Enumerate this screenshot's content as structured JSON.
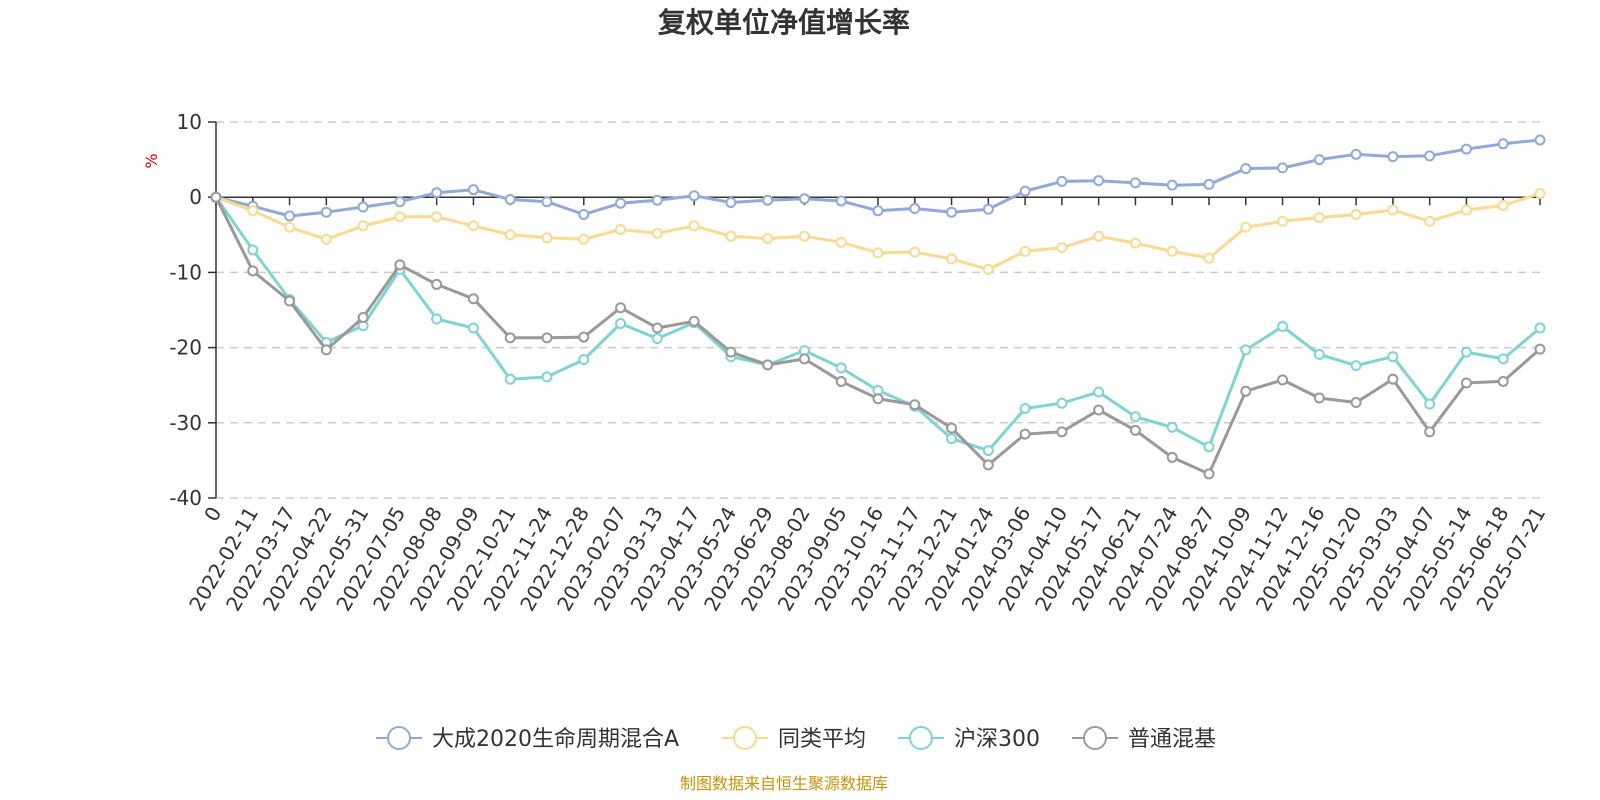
{
  "chart_data": {
    "type": "line",
    "title": "复权单位净值增长率",
    "ylabel": "%",
    "ylim": [
      -40,
      10
    ],
    "yticks": [
      10,
      0,
      -10,
      -20,
      -30,
      -40
    ],
    "grid": true,
    "legend_position": "bottom",
    "source": "制图数据来自恒生聚源数据库",
    "x_tick_labels": [
      "0",
      "2022-02-11",
      "2022-03-17",
      "2022-04-22",
      "2022-05-31",
      "2022-07-05",
      "2022-08-08",
      "2022-09-09",
      "2022-10-21",
      "2022-11-24",
      "2022-12-28",
      "2023-02-07",
      "2023-03-13",
      "2023-04-17",
      "2023-05-24",
      "2023-06-29",
      "2023-08-02",
      "2023-09-05",
      "2023-10-16",
      "2023-11-17",
      "2023-12-21",
      "2024-01-24",
      "2024-03-06",
      "2024-04-10",
      "2024-05-17",
      "2024-06-21",
      "2024-07-24",
      "2024-08-27",
      "2024-10-09",
      "2024-11-12",
      "2024-12-16",
      "2025-01-20",
      "2025-03-03",
      "2025-04-07",
      "2025-05-14",
      "2025-06-18",
      "2025-07-21"
    ],
    "series": [
      {
        "name": "大成2020生命周期混合A",
        "color": "#8fa9d8",
        "values": [
          0,
          -1.2,
          -2.5,
          -2.0,
          -1.3,
          -0.6,
          0.6,
          1.0,
          -0.3,
          -0.6,
          -2.3,
          -0.8,
          -0.4,
          0.2,
          -0.7,
          -0.4,
          -0.2,
          -0.5,
          -1.8,
          -1.5,
          -2.0,
          -1.6,
          0.8,
          2.1,
          2.2,
          1.9,
          1.6,
          1.7,
          3.8,
          3.9,
          5.0,
          5.7,
          5.4,
          5.5,
          6.4,
          7.1,
          7.6
        ]
      },
      {
        "name": "同类平均",
        "color": "#fbd991",
        "values": [
          0,
          -1.8,
          -4.0,
          -5.6,
          -3.8,
          -2.6,
          -2.6,
          -3.8,
          -5.0,
          -5.4,
          -5.6,
          -4.3,
          -4.8,
          -3.8,
          -5.2,
          -5.5,
          -5.2,
          -6.0,
          -7.4,
          -7.3,
          -8.2,
          -9.6,
          -7.2,
          -6.7,
          -5.2,
          -6.1,
          -7.2,
          -8.1,
          -4.0,
          -3.2,
          -2.7,
          -2.3,
          -1.7,
          -3.2,
          -1.7,
          -1.1,
          0.5
        ]
      },
      {
        "name": "沪深300",
        "color": "#7fd3d6",
        "values": [
          0,
          -7.0,
          -13.6,
          -19.3,
          -17.1,
          -9.6,
          -16.2,
          -17.4,
          -24.2,
          -23.9,
          -21.6,
          -16.8,
          -18.8,
          -16.7,
          -21.2,
          -22.3,
          -20.4,
          -22.7,
          -25.7,
          -27.8,
          -32.1,
          -33.7,
          -28.1,
          -27.4,
          -25.9,
          -29.2,
          -30.6,
          -33.2,
          -20.3,
          -17.2,
          -20.9,
          -22.4,
          -21.2,
          -27.5,
          -20.6,
          -21.5,
          -17.4
        ]
      },
      {
        "name": "普通混基",
        "color": "#999999",
        "values": [
          0,
          -9.8,
          -13.8,
          -20.3,
          -16.0,
          -9.0,
          -11.6,
          -13.5,
          -18.7,
          -18.7,
          -18.6,
          -14.7,
          -17.4,
          -16.5,
          -20.6,
          -22.3,
          -21.5,
          -24.5,
          -26.8,
          -27.6,
          -30.7,
          -35.6,
          -31.5,
          -31.2,
          -28.3,
          -31.0,
          -34.6,
          -36.8,
          -25.8,
          -24.3,
          -26.7,
          -27.3,
          -24.2,
          -31.2,
          -24.7,
          -24.5,
          -20.2
        ]
      }
    ]
  }
}
